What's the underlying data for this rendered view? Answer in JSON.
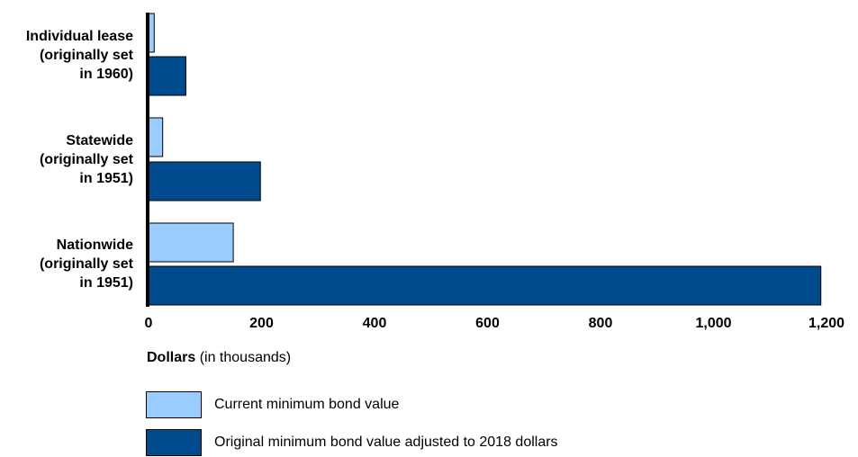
{
  "chart_data": {
    "type": "bar",
    "orientation": "horizontal",
    "categories": [
      [
        "Individual lease",
        "(originally set",
        "in 1960)"
      ],
      [
        "Statewide",
        "(originally set",
        "in 1951)"
      ],
      [
        "Nationwide",
        "(originally set",
        "in 1951)"
      ]
    ],
    "series": [
      {
        "name": "Current minimum bond value",
        "color": "#99ccff",
        "values": [
          10,
          25,
          150
        ]
      },
      {
        "name": "Original minimum bond value adjusted to 2018 dollars",
        "color": "#004b8d",
        "values": [
          66,
          198,
          1190
        ]
      }
    ],
    "xlabel_bold": "Dollars",
    "xlabel_rest": " (in thousands)",
    "xlim": [
      0,
      1200
    ],
    "xticks": [
      {
        "value": 0,
        "label": "0"
      },
      {
        "value": 200,
        "label": "200"
      },
      {
        "value": 400,
        "label": "400"
      },
      {
        "value": 600,
        "label": "600"
      },
      {
        "value": 800,
        "label": "800"
      },
      {
        "value": 1000,
        "label": "1,000"
      },
      {
        "value": 1200,
        "label": "1,200"
      }
    ],
    "grid": false,
    "legend_position": "bottom-left"
  }
}
